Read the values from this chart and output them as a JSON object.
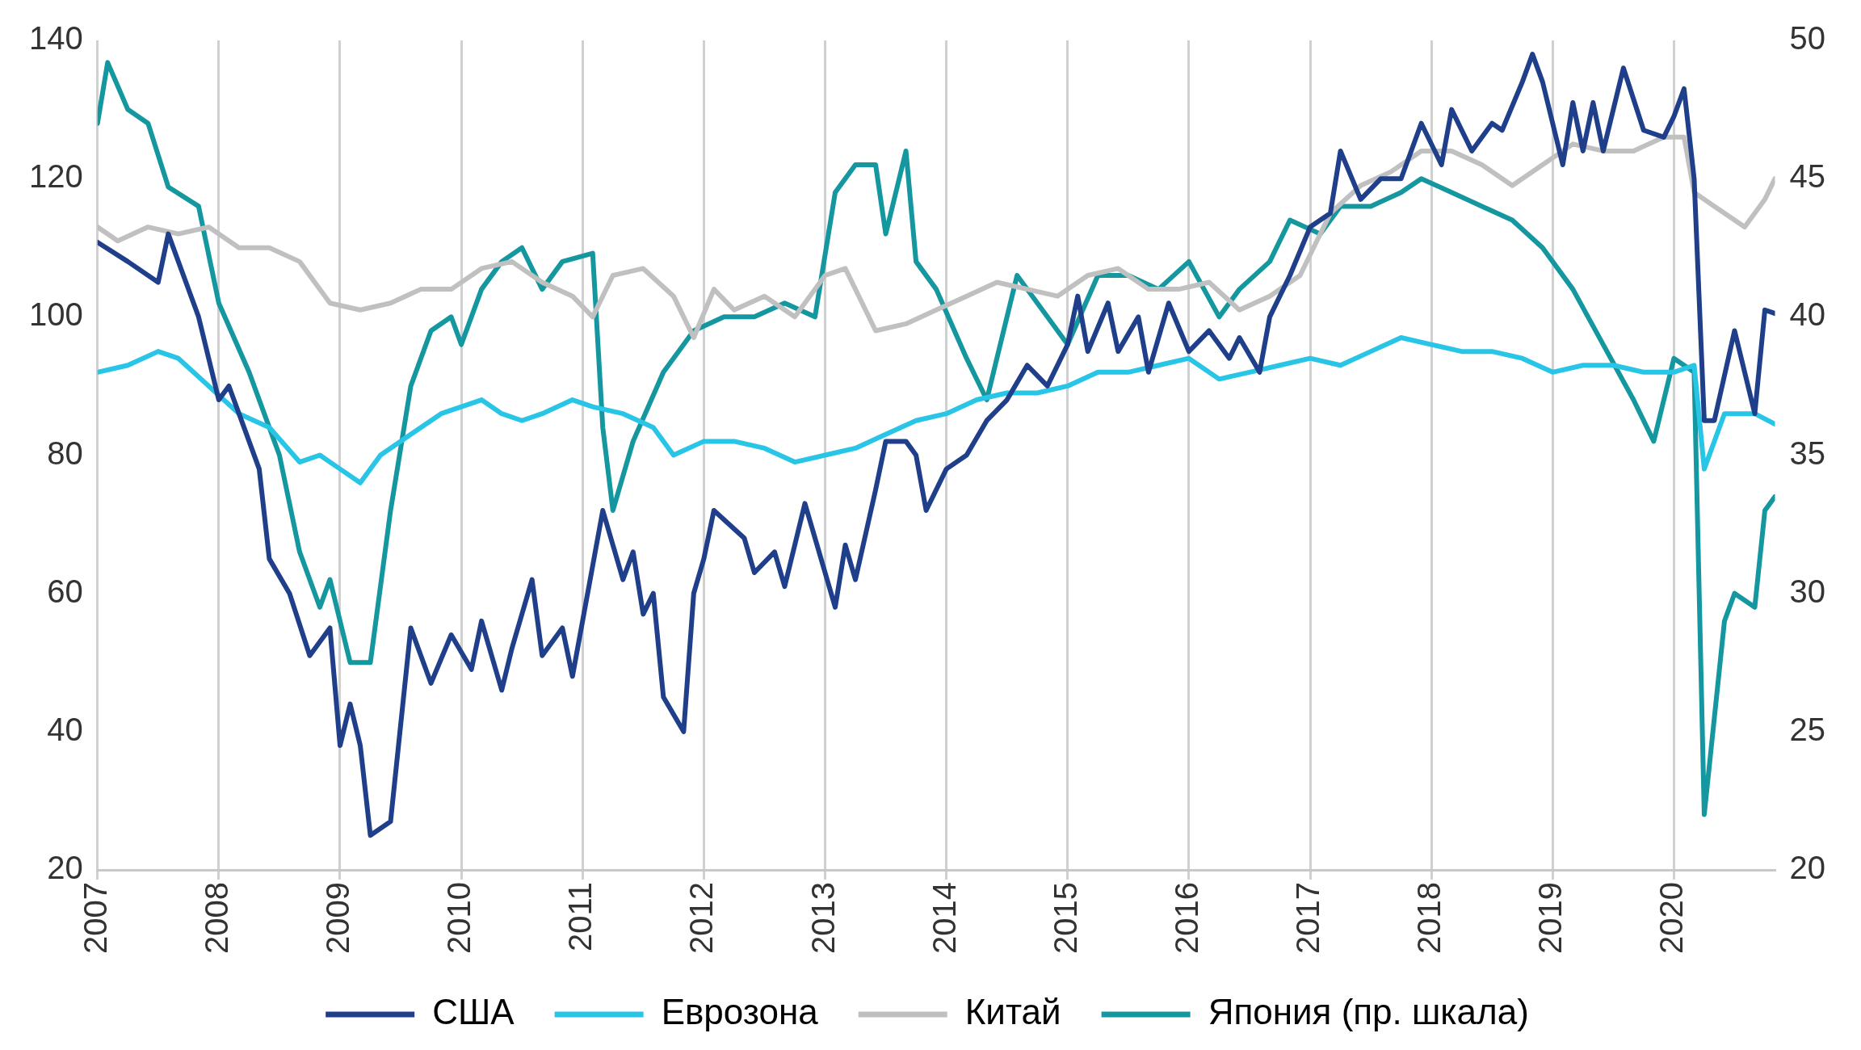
{
  "chart_data": {
    "type": "line",
    "xlim": [
      "2007-01",
      "2020-11"
    ],
    "xticks": [
      "2007",
      "2008",
      "2009",
      "2010",
      "2011",
      "2012",
      "2013",
      "2014",
      "2015",
      "2016",
      "2017",
      "2018",
      "2019",
      "2020"
    ],
    "ylim": [
      20,
      140
    ],
    "yticks": [
      20,
      40,
      60,
      80,
      100,
      120,
      140
    ],
    "y2lim": [
      20,
      50
    ],
    "y2ticks": [
      20,
      25,
      30,
      35,
      40,
      45,
      50
    ],
    "grid": "x",
    "legend": "bottom",
    "marker": "none",
    "line_style": "solid",
    "series": [
      {
        "name": "США",
        "color": "#1f3f8a",
        "x": [
          "2007-01",
          "2007-04",
          "2007-07",
          "2007-08",
          "2007-11",
          "2008-01",
          "2008-02",
          "2008-05",
          "2008-06",
          "2008-08",
          "2008-10",
          "2008-12",
          "2009-01",
          "2009-02",
          "2009-03",
          "2009-04",
          "2009-06",
          "2009-08",
          "2009-10",
          "2009-12",
          "2010-02",
          "2010-03",
          "2010-05",
          "2010-06",
          "2010-08",
          "2010-09",
          "2010-11",
          "2010-12",
          "2011-02",
          "2011-03",
          "2011-05",
          "2011-06",
          "2011-07",
          "2011-08",
          "2011-09",
          "2011-11",
          "2011-12",
          "2012-01",
          "2012-02",
          "2012-05",
          "2012-06",
          "2012-08",
          "2012-09",
          "2012-11",
          "2012-12",
          "2013-02",
          "2013-03",
          "2013-04",
          "2013-06",
          "2013-07",
          "2013-09",
          "2013-10",
          "2013-11",
          "2014-01",
          "2014-03",
          "2014-05",
          "2014-07",
          "2014-09",
          "2014-11",
          "2015-01",
          "2015-02",
          "2015-03",
          "2015-05",
          "2015-06",
          "2015-08",
          "2015-09",
          "2015-11",
          "2016-01",
          "2016-03",
          "2016-05",
          "2016-06",
          "2016-08",
          "2016-09",
          "2016-11",
          "2017-01",
          "2017-03",
          "2017-04",
          "2017-06",
          "2017-08",
          "2017-10",
          "2017-12",
          "2018-02",
          "2018-03",
          "2018-05",
          "2018-07",
          "2018-08",
          "2018-10",
          "2018-11",
          "2018-12",
          "2019-02",
          "2019-03",
          "2019-04",
          "2019-05",
          "2019-06",
          "2019-08",
          "2019-10",
          "2019-12",
          "2020-01",
          "2020-02",
          "2020-03",
          "2020-04",
          "2020-05",
          "2020-07",
          "2020-09",
          "2020-10",
          "2020-11"
        ],
        "values": [
          110.8,
          108,
          105,
          112,
          100,
          88,
          90,
          78,
          65,
          60,
          51,
          55,
          38,
          44,
          38,
          25,
          27,
          55,
          47,
          54,
          49,
          56,
          46,
          52,
          62,
          51,
          55,
          48,
          64,
          72,
          62,
          66,
          57,
          60,
          45,
          40,
          60,
          65,
          72,
          68,
          63,
          66,
          61,
          73,
          68,
          58,
          67,
          62,
          75,
          82,
          82,
          80,
          72,
          78,
          80,
          85,
          88,
          93,
          90,
          96,
          103,
          95,
          102,
          95,
          100,
          92,
          102,
          95,
          98,
          94,
          97,
          92,
          100,
          106,
          113,
          115,
          124,
          117,
          120,
          120,
          128,
          122,
          130,
          124,
          128,
          127,
          134,
          138,
          134,
          122,
          131,
          124,
          131,
          124,
          136,
          127,
          126,
          129,
          133,
          120,
          85,
          85,
          98,
          86,
          101,
          100.5
        ]
      },
      {
        "name": "Еврозона",
        "color": "#29c5e6",
        "x": [
          "2007-01",
          "2007-04",
          "2007-07",
          "2007-09",
          "2007-12",
          "2008-03",
          "2008-06",
          "2008-09",
          "2008-11",
          "2009-01",
          "2009-03",
          "2009-05",
          "2009-08",
          "2009-11",
          "2010-01",
          "2010-03",
          "2010-05",
          "2010-07",
          "2010-09",
          "2010-12",
          "2011-02",
          "2011-05",
          "2011-08",
          "2011-10",
          "2012-01",
          "2012-04",
          "2012-07",
          "2012-10",
          "2013-01",
          "2013-04",
          "2013-07",
          "2013-10",
          "2014-01",
          "2014-04",
          "2014-07",
          "2014-10",
          "2015-01",
          "2015-04",
          "2015-07",
          "2015-10",
          "2016-01",
          "2016-04",
          "2016-07",
          "2016-10",
          "2017-01",
          "2017-04",
          "2017-07",
          "2017-10",
          "2018-01",
          "2018-04",
          "2018-07",
          "2018-10",
          "2019-01",
          "2019-04",
          "2019-07",
          "2019-10",
          "2020-01",
          "2020-03",
          "2020-04",
          "2020-06",
          "2020-09",
          "2020-11"
        ],
        "values": [
          92,
          93,
          95,
          94,
          90,
          86,
          84,
          79,
          80,
          78,
          76,
          80,
          83,
          86,
          87,
          88,
          86,
          85,
          86,
          88,
          87,
          86,
          84,
          80,
          82,
          82,
          81,
          79,
          80,
          81,
          83,
          85,
          86,
          88,
          89,
          89,
          90,
          92,
          92,
          93,
          94,
          91,
          92,
          93,
          94,
          93,
          95,
          97,
          96,
          95,
          95,
          94,
          92,
          93,
          93,
          92,
          92,
          93,
          78,
          86,
          86,
          84.5
        ]
      },
      {
        "name": "Китай",
        "color": "#c0c0c0",
        "x": [
          "2007-01",
          "2007-03",
          "2007-06",
          "2007-09",
          "2007-12",
          "2008-03",
          "2008-06",
          "2008-09",
          "2008-12",
          "2009-03",
          "2009-06",
          "2009-09",
          "2009-12",
          "2010-03",
          "2010-06",
          "2010-09",
          "2010-12",
          "2011-02",
          "2011-04",
          "2011-07",
          "2011-10",
          "2011-12",
          "2012-02",
          "2012-04",
          "2012-07",
          "2012-10",
          "2013-01",
          "2013-03",
          "2013-06",
          "2013-09",
          "2013-12",
          "2014-03",
          "2014-06",
          "2014-09",
          "2014-12",
          "2015-03",
          "2015-06",
          "2015-09",
          "2015-12",
          "2016-03",
          "2016-06",
          "2016-09",
          "2016-12",
          "2017-03",
          "2017-06",
          "2017-09",
          "2017-12",
          "2018-03",
          "2018-06",
          "2018-09",
          "2018-12",
          "2019-03",
          "2019-06",
          "2019-09",
          "2019-12",
          "2020-02",
          "2020-03",
          "2020-05",
          "2020-08",
          "2020-10",
          "2020-11"
        ],
        "values": [
          113,
          111,
          113,
          112,
          113,
          110,
          110,
          108,
          102,
          101,
          102,
          104,
          104,
          107,
          108,
          105,
          103,
          100,
          106,
          107,
          103,
          97,
          104,
          101,
          103,
          100,
          106,
          107,
          98,
          99,
          101,
          103,
          105,
          104,
          103,
          106,
          107,
          104,
          104,
          105,
          101,
          103,
          106,
          115,
          119,
          121,
          124,
          124,
          122,
          119,
          122,
          125,
          124,
          124,
          126,
          126,
          118,
          116,
          113,
          117,
          120
        ]
      },
      {
        "name": "Япония (пр. шкала)",
        "color": "#14979f",
        "axis": "y2",
        "x": [
          "2007-01",
          "2007-02",
          "2007-04",
          "2007-06",
          "2007-08",
          "2007-11",
          "2008-01",
          "2008-04",
          "2008-07",
          "2008-09",
          "2008-11",
          "2008-12",
          "2009-02",
          "2009-04",
          "2009-06",
          "2009-08",
          "2009-10",
          "2009-12",
          "2010-01",
          "2010-03",
          "2010-05",
          "2010-07",
          "2010-09",
          "2010-11",
          "2011-02",
          "2011-03",
          "2011-04",
          "2011-06",
          "2011-09",
          "2011-12",
          "2012-03",
          "2012-06",
          "2012-09",
          "2012-12",
          "2013-02",
          "2013-04",
          "2013-06",
          "2013-07",
          "2013-09",
          "2013-10",
          "2013-12",
          "2014-03",
          "2014-05",
          "2014-08",
          "2014-11",
          "2015-01",
          "2015-04",
          "2015-07",
          "2015-10",
          "2016-01",
          "2016-04",
          "2016-06",
          "2016-09",
          "2016-11",
          "2017-02",
          "2017-04",
          "2017-07",
          "2017-10",
          "2017-12",
          "2018-03",
          "2018-06",
          "2018-09",
          "2018-12",
          "2019-03",
          "2019-06",
          "2019-09",
          "2019-11",
          "2020-01",
          "2020-03",
          "2020-04",
          "2020-06",
          "2020-07",
          "2020-09",
          "2020-10",
          "2020-11"
        ],
        "values": [
          47,
          49.2,
          47.5,
          47,
          44.7,
          44,
          40.5,
          38,
          35,
          31.5,
          29.5,
          30.5,
          27.5,
          27.5,
          33,
          37.5,
          39.5,
          40,
          39,
          41,
          42,
          42.5,
          41,
          42,
          42.3,
          36,
          33,
          35.5,
          38,
          39.5,
          40,
          40,
          40.5,
          40,
          44.5,
          45.5,
          45.5,
          43,
          46,
          42,
          41,
          38.5,
          37,
          41.5,
          40,
          39,
          41.5,
          41.5,
          41,
          42,
          40,
          41,
          42,
          43.5,
          43,
          44,
          44,
          44.5,
          45,
          44.5,
          44,
          43.5,
          42.5,
          41,
          39,
          37,
          35.5,
          38.5,
          38,
          22,
          29,
          30,
          29.5,
          33,
          33.5
        ]
      }
    ]
  }
}
